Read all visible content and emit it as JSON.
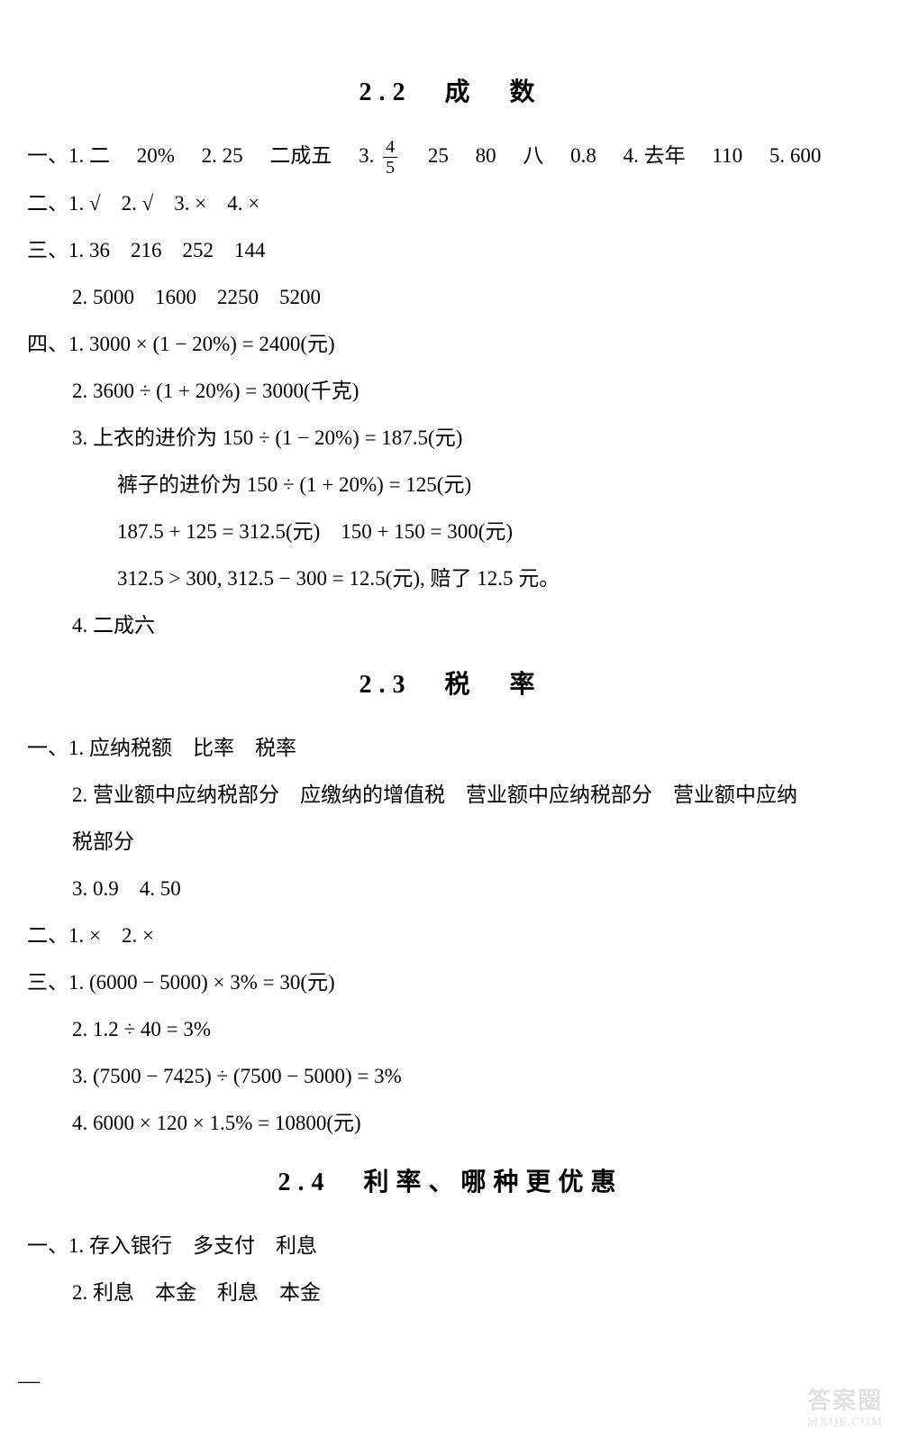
{
  "sections": {
    "s22": {
      "title": "2.2　成　数",
      "lines": {
        "l1a": "一、1. 二",
        "l1b": "20%",
        "l1c": "2. 25",
        "l1d": "二成五",
        "l1e": "3.",
        "l1frac_num": "4",
        "l1frac_den": "5",
        "l1f": "25",
        "l1g": "80",
        "l1h": "八",
        "l1i": "0.8",
        "l1j": "4. 去年",
        "l1k": "110",
        "l1l": "5. 600",
        "l2": "二、1. √　2. √　3. ×　4. ×",
        "l3": "三、1. 36　216　252　144",
        "l4": "2. 5000　1600　2250　5200",
        "l5": "四、1. 3000 × (1 − 20%) = 2400(元)",
        "l6": "2. 3600 ÷ (1 + 20%) = 3000(千克)",
        "l7": "3. 上衣的进价为 150 ÷ (1 − 20%) = 187.5(元)",
        "l8": "裤子的进价为 150 ÷ (1 + 20%) = 125(元)",
        "l9": "187.5 + 125 = 312.5(元)　150 + 150 = 300(元)",
        "l10": "312.5 > 300, 312.5 − 300 = 12.5(元), 赔了 12.5 元。",
        "l11": "4. 二成六"
      }
    },
    "s23": {
      "title": "2.3　税　率",
      "lines": {
        "l1": "一、1. 应纳税额　比率　税率",
        "l2": "2. 营业额中应纳税部分　应缴纳的增值税　营业额中应纳税部分　营业额中应纳",
        "l2b": "税部分",
        "l3": "3. 0.9　4. 50",
        "l4": "二、1. ×　2. ×",
        "l5": "三、1. (6000 − 5000) × 3% = 30(元)",
        "l6": "2. 1.2 ÷ 40 = 3%",
        "l7": "3. (7500 − 7425) ÷ (7500 − 5000) = 3%",
        "l8": "4. 6000 × 120 × 1.5% = 10800(元)"
      }
    },
    "s24": {
      "title": "2.4　利率、哪种更优惠",
      "lines": {
        "l1": "一、1. 存入银行　多支付　利息",
        "l2": "2. 利息　本金　利息　本金"
      }
    }
  },
  "watermark": {
    "top": "答案圈",
    "bottom": "MXQE.COM"
  },
  "dash": "—"
}
